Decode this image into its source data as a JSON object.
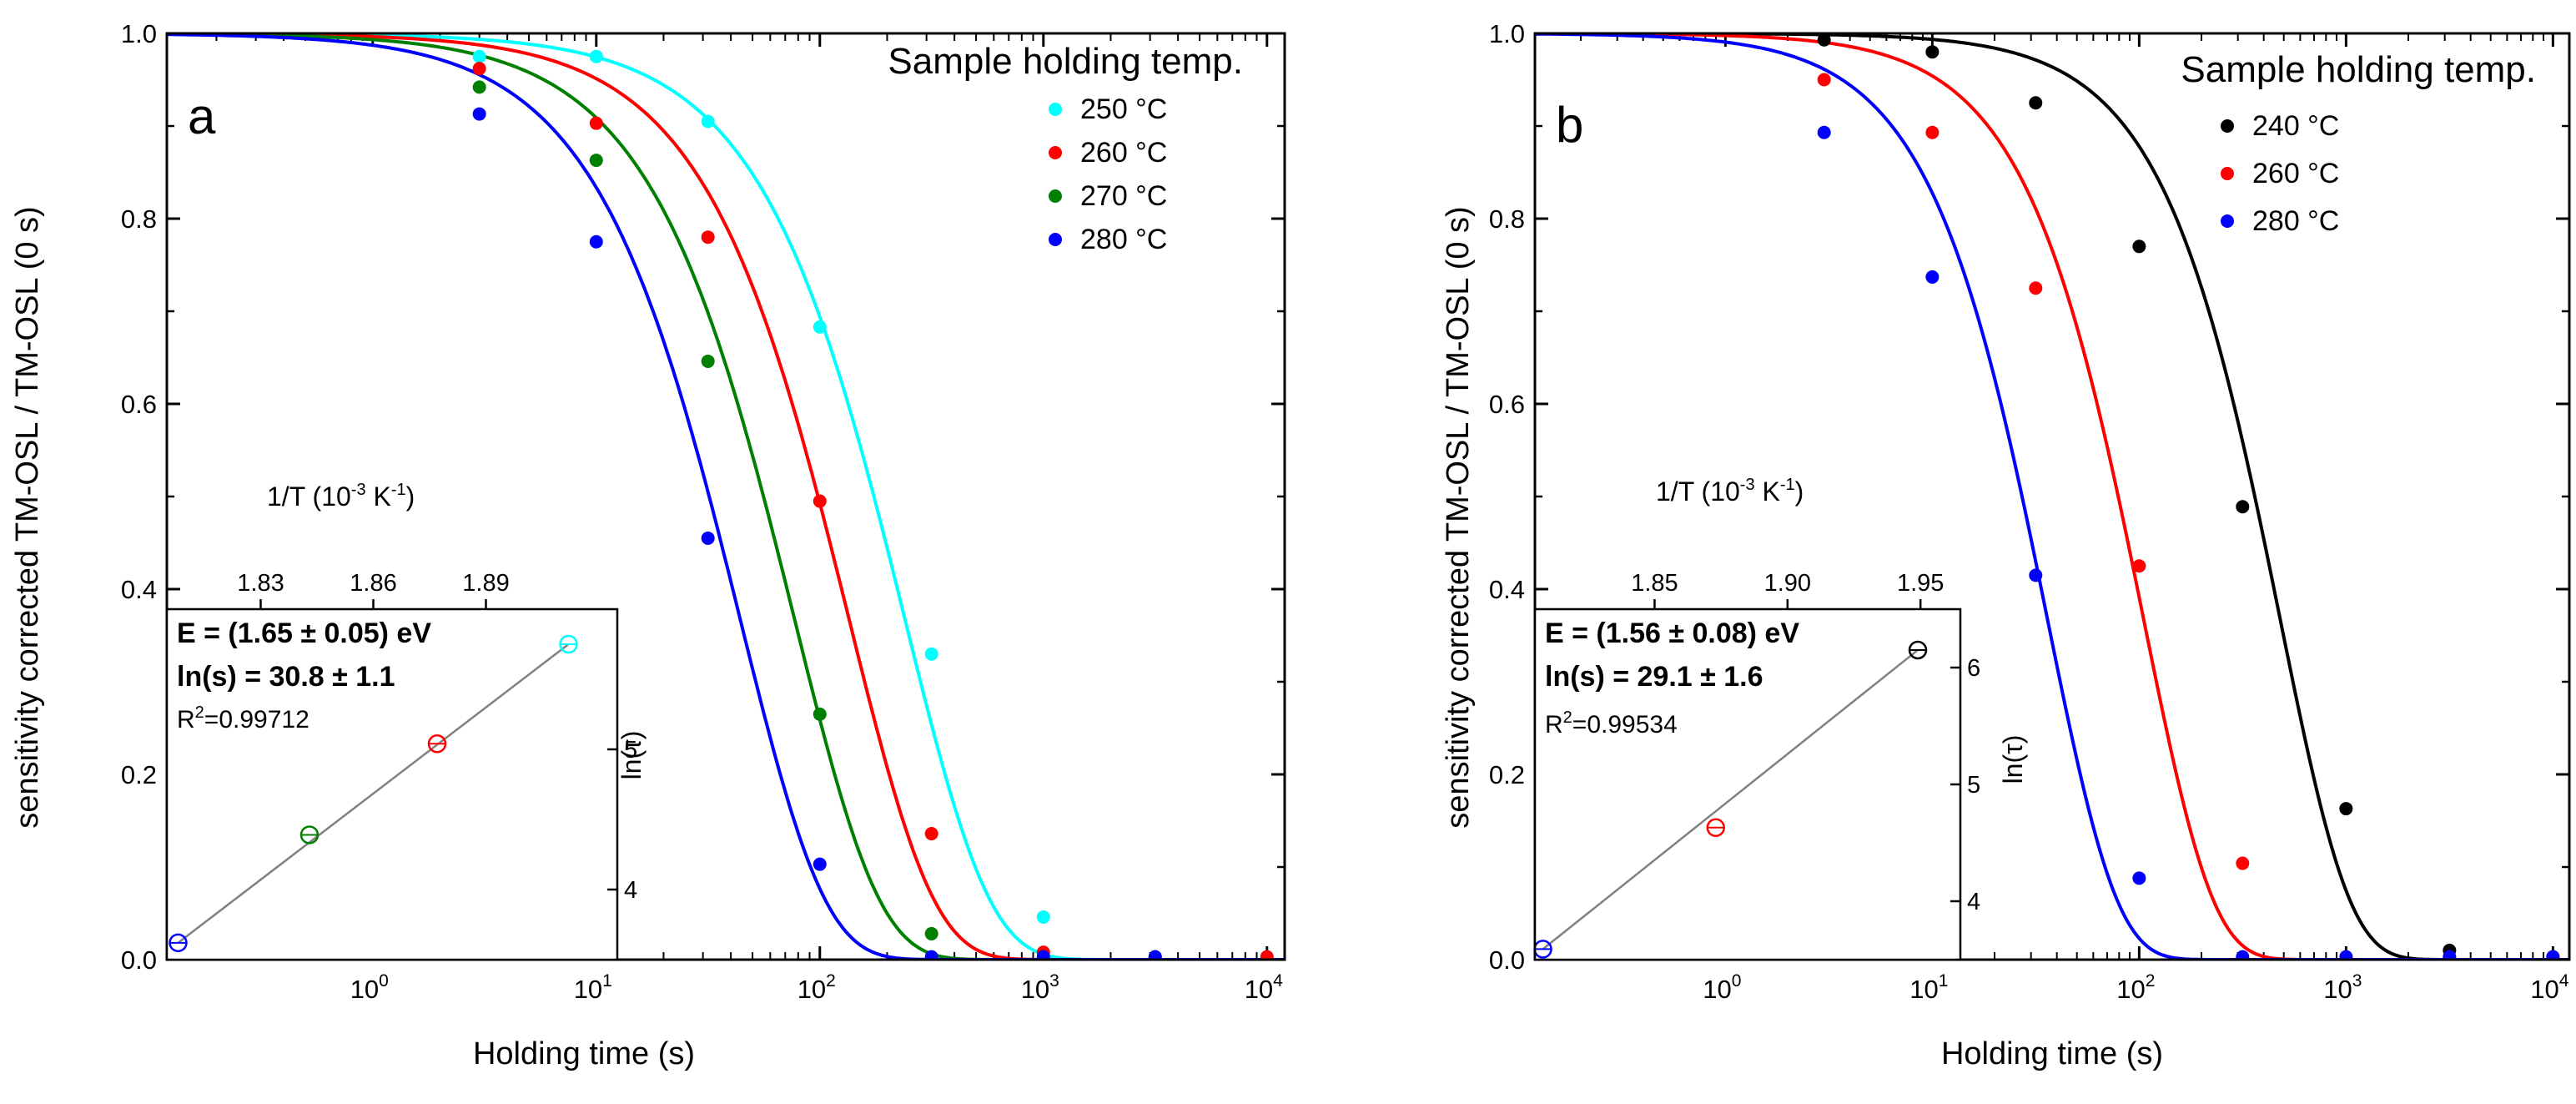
{
  "figure": {
    "y_axis_title": "sensitivity corrected TM-OSL / TM-OSL (0 s)",
    "x_axis_title": "Holding time (s)"
  },
  "chart_data": [
    {
      "type": "scatter",
      "panel": "a",
      "xscale": "log",
      "xlim": [
        0.12,
        12000
      ],
      "ylim": [
        0,
        1.0
      ],
      "xticks": [
        {
          "value": 1,
          "base": "10",
          "exp": "0"
        },
        {
          "value": 10,
          "base": "10",
          "exp": "1"
        },
        {
          "value": 100,
          "base": "10",
          "exp": "2"
        },
        {
          "value": 1000,
          "base": "10",
          "exp": "3"
        },
        {
          "value": 10000,
          "base": "10",
          "exp": "4"
        }
      ],
      "yticks": [
        "0.0",
        "0.2",
        "0.4",
        "0.6",
        "0.8",
        "1.0"
      ],
      "ytick_values": [
        0,
        0.2,
        0.4,
        0.6,
        0.8,
        1.0
      ],
      "xlabel": "Holding time (s)",
      "ylabel": "sensitivity corrected TM-OSL / TM-OSL (0 s)",
      "legend_title": "Sample holding temp.",
      "legend_position": "top-right",
      "series": [
        {
          "name": "250 °C",
          "color": "#00ffff",
          "tau": 240,
          "beta": 1.15,
          "x": [
            3,
            10,
            31.6,
            100,
            316,
            1000,
            3162,
            10000
          ],
          "y": [
            0.975,
            0.975,
            0.905,
            0.683,
            0.33,
            0.046,
            0.003,
            0.003
          ]
        },
        {
          "name": "260 °C",
          "color": "#ff0000",
          "tau": 135,
          "beta": 1.15,
          "x": [
            3,
            10,
            31.6,
            100,
            316,
            1000,
            3162,
            10000
          ],
          "y": [
            0.962,
            0.903,
            0.78,
            0.495,
            0.136,
            0.008,
            0.003,
            0.003
          ]
        },
        {
          "name": "270 °C",
          "color": "#008000",
          "tau": 77,
          "beta": 1.15,
          "x": [
            3,
            10,
            31.6,
            100,
            316,
            1000,
            3162
          ],
          "y": [
            0.942,
            0.863,
            0.646,
            0.265,
            0.028,
            0.003,
            0.003
          ]
        },
        {
          "name": "280 °C",
          "color": "#0000ff",
          "tau": 44,
          "beta": 1.15,
          "x": [
            3,
            10,
            31.6,
            100,
            316,
            1000,
            3162
          ],
          "y": [
            0.913,
            0.775,
            0.455,
            0.103,
            0.003,
            0.003,
            0.003
          ]
        }
      ],
      "inset": {
        "type": "scatter",
        "x_axis_title": "1/T (10",
        "x_axis_title_exp": "-3",
        "x_axis_title_unit": " K",
        "x_axis_title_unit_exp": "-1",
        "x_axis_title_end": ")",
        "y_axis_title": "ln(τ)",
        "xlim": [
          1.805,
          1.925
        ],
        "ylim": [
          3.5,
          6.0
        ],
        "xticks": [
          "1.83",
          "1.86",
          "1.89"
        ],
        "xtick_values": [
          1.83,
          1.86,
          1.89
        ],
        "yticks": [
          "4",
          "5"
        ],
        "ytick_values": [
          4,
          5
        ],
        "energy_text": "E = (1.65 ± 0.05) eV",
        "ln_s_text": "ln(s) = 30.8 ± 1.1",
        "r2_prefix": "R",
        "r2_exp": "2",
        "r2_value": "=0.99712",
        "points": [
          {
            "x": 1.808,
            "y": 3.62,
            "color": "#0000ff"
          },
          {
            "x": 1.843,
            "y": 4.39,
            "color": "#008000"
          },
          {
            "x": 1.877,
            "y": 5.04,
            "color": "#ff0000"
          },
          {
            "x": 1.912,
            "y": 5.75,
            "color": "#00ffff"
          }
        ]
      }
    },
    {
      "type": "scatter",
      "panel": "b",
      "xscale": "log",
      "xlim": [
        0.12,
        12000
      ],
      "ylim": [
        0,
        1.0
      ],
      "xticks": [
        {
          "value": 1,
          "base": "10",
          "exp": "0"
        },
        {
          "value": 10,
          "base": "10",
          "exp": "1"
        },
        {
          "value": 100,
          "base": "10",
          "exp": "2"
        },
        {
          "value": 1000,
          "base": "10",
          "exp": "3"
        },
        {
          "value": 10000,
          "base": "10",
          "exp": "4"
        }
      ],
      "yticks": [
        "0.0",
        "0.2",
        "0.4",
        "0.6",
        "0.8",
        "1.0"
      ],
      "ytick_values": [
        0,
        0.2,
        0.4,
        0.6,
        0.8,
        1.0
      ],
      "xlabel": "Holding time (s)",
      "ylabel": "sensitivity corrected TM-OSL / TM-OSL (0 s)",
      "legend_title": "Sample holding temp.",
      "legend_position": "top-right",
      "series": [
        {
          "name": "240 °C",
          "color": "#000000",
          "tau": 480,
          "beta": 1.3,
          "x": [
            3,
            10,
            31.6,
            100,
            316,
            1000,
            3162,
            10000
          ],
          "y": [
            0.993,
            0.98,
            0.925,
            0.77,
            0.489,
            0.163,
            0.01,
            0.003
          ]
        },
        {
          "name": "260 °C",
          "color": "#ff0000",
          "tau": 105,
          "beta": 1.3,
          "x": [
            3,
            10,
            31.6,
            100,
            316,
            1000,
            3162,
            10000
          ],
          "y": [
            0.95,
            0.893,
            0.725,
            0.425,
            0.104,
            0.003,
            0.003,
            0.003
          ]
        },
        {
          "name": "280 °C",
          "color": "#0000ff",
          "tau": 36,
          "beta": 1.3,
          "x": [
            3,
            10,
            31.6,
            100,
            316,
            1000,
            3162,
            10000
          ],
          "y": [
            0.893,
            0.737,
            0.415,
            0.088,
            0.003,
            0.003,
            0.003,
            0.003
          ]
        }
      ],
      "inset": {
        "type": "scatter",
        "x_axis_title": "1/T (10",
        "x_axis_title_exp": "-3",
        "x_axis_title_unit": " K",
        "x_axis_title_unit_exp": "-1",
        "x_axis_title_end": ")",
        "y_axis_title": "ln(τ)",
        "xlim": [
          1.805,
          1.965
        ],
        "ylim": [
          3.5,
          6.5
        ],
        "xticks": [
          "1.85",
          "1.90",
          "1.95"
        ],
        "xtick_values": [
          1.85,
          1.9,
          1.95
        ],
        "yticks": [
          "4",
          "5",
          "6"
        ],
        "ytick_values": [
          4,
          5,
          6
        ],
        "energy_text": "E = (1.56 ± 0.08) eV",
        "ln_s_text": "ln(s) = 29.1 ± 1.6",
        "r2_prefix": "R",
        "r2_exp": "2",
        "r2_value": "=0.99534",
        "points": [
          {
            "x": 1.808,
            "y": 3.59,
            "color": "#0000ff"
          },
          {
            "x": 1.873,
            "y": 4.63,
            "color": "#ff0000"
          },
          {
            "x": 1.949,
            "y": 6.15,
            "color": "#000000"
          }
        ]
      }
    }
  ]
}
